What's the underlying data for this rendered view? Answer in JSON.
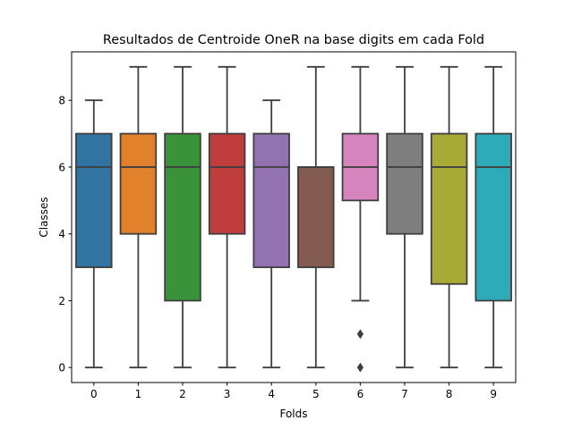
{
  "chart_data": {
    "type": "box",
    "title": "Resultados de Centroide OneR na base digits em cada Fold",
    "xlabel": "Folds",
    "ylabel": "Classes",
    "ylim": [
      -0.45,
      9.45
    ],
    "yticks": [
      0,
      2,
      4,
      6,
      8
    ],
    "categories": [
      "0",
      "1",
      "2",
      "3",
      "4",
      "5",
      "6",
      "7",
      "8",
      "9"
    ],
    "boxes": [
      {
        "fold": "0",
        "whisker_low": 0,
        "q1": 3,
        "median": 6,
        "q3": 7,
        "whisker_high": 8,
        "outliers": [],
        "color": "#3274a1"
      },
      {
        "fold": "1",
        "whisker_low": 0,
        "q1": 4,
        "median": 6,
        "q3": 7,
        "whisker_high": 9,
        "outliers": [],
        "color": "#e1812c"
      },
      {
        "fold": "2",
        "whisker_low": 0,
        "q1": 2,
        "median": 6,
        "q3": 7,
        "whisker_high": 9,
        "outliers": [],
        "color": "#3a923a"
      },
      {
        "fold": "3",
        "whisker_low": 0,
        "q1": 4,
        "median": 6,
        "q3": 7,
        "whisker_high": 9,
        "outliers": [],
        "color": "#c03d3e"
      },
      {
        "fold": "4",
        "whisker_low": 0,
        "q1": 3,
        "median": 6,
        "q3": 7,
        "whisker_high": 8,
        "outliers": [],
        "color": "#9372b2"
      },
      {
        "fold": "5",
        "whisker_low": 0,
        "q1": 3,
        "median": 6,
        "q3": 6,
        "whisker_high": 9,
        "outliers": [],
        "color": "#845b53"
      },
      {
        "fold": "6",
        "whisker_low": 2,
        "q1": 5,
        "median": 6,
        "q3": 7,
        "whisker_high": 9,
        "outliers": [
          0,
          1
        ],
        "color": "#d684bd"
      },
      {
        "fold": "7",
        "whisker_low": 0,
        "q1": 4,
        "median": 6,
        "q3": 7,
        "whisker_high": 9,
        "outliers": [],
        "color": "#7f7f7f"
      },
      {
        "fold": "8",
        "whisker_low": 0,
        "q1": 2.5,
        "median": 6,
        "q3": 7,
        "whisker_high": 9,
        "outliers": [],
        "color": "#a9aa35"
      },
      {
        "fold": "9",
        "whisker_low": 0,
        "q1": 2,
        "median": 6,
        "q3": 7,
        "whisker_high": 9,
        "outliers": [],
        "color": "#2eabb8"
      }
    ],
    "line_color": "#3f3f3f",
    "grid": false,
    "legend": "none"
  }
}
